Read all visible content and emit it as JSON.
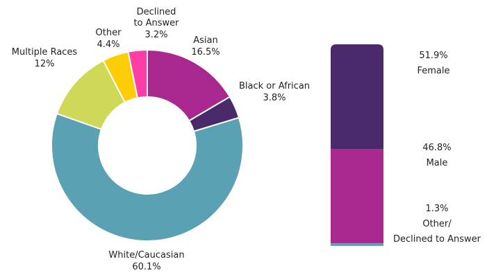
{
  "chart_data": [
    {
      "type": "pie",
      "subtype": "donut",
      "unit": "%",
      "slices": [
        {
          "label": "Asian",
          "display_value": "16.5%",
          "value": 16.5,
          "color": "#A9288F"
        },
        {
          "label": "Black or African",
          "display_value": "3.8%",
          "value": 3.8,
          "color": "#4A2A6A"
        },
        {
          "label": "White/Caucasian",
          "display_value": "60.1%",
          "value": 60.1,
          "color": "#5AA1B4"
        },
        {
          "label": "Multiple Races",
          "display_value": "12%",
          "value": 12,
          "color": "#CFD957"
        },
        {
          "label": "Other",
          "display_value": "4.4%",
          "value": 4.4,
          "color": "#FFCD05"
        },
        {
          "label": "Declined to Answer",
          "label_lines": [
            "Declined",
            "to Answer"
          ],
          "display_value": "3.2%",
          "value": 3.2,
          "color": "#FF3DA6"
        }
      ]
    },
    {
      "type": "bar",
      "subtype": "stacked-100",
      "unit": "%",
      "segments": [
        {
          "label": "Female",
          "label_lines": [
            "Female"
          ],
          "display_value": "51.9%",
          "value": 51.9,
          "color": "#4A2A6A"
        },
        {
          "label": "Male",
          "label_lines": [
            "Male"
          ],
          "display_value": "46.8%",
          "value": 46.8,
          "color": "#A9288F"
        },
        {
          "label": "Other/ Declined to Answer",
          "label_lines": [
            "Other/",
            "Declined to Answer"
          ],
          "display_value": "1.3%",
          "value": 1.3,
          "color": "#5AA1B4"
        }
      ]
    }
  ]
}
